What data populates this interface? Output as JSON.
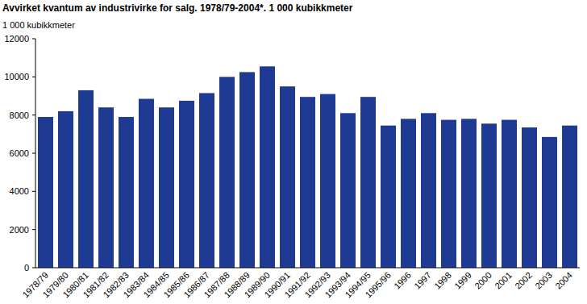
{
  "chart_data": {
    "type": "bar",
    "title": "Avvirket kvantum av industrivirke for salg. 1978/79-2004*. 1 000 kubikkmeter",
    "y_label": "1 000 kubikkmeter",
    "categories": [
      "1978/79",
      "1979/80",
      "1980/81",
      "1981/82",
      "1982/83",
      "1983/84",
      "1984/85",
      "1985/86",
      "1986/87",
      "1987/88",
      "1988/89",
      "1989/90",
      "1990/91",
      "1991/92",
      "1992/93",
      "1993/94",
      "1994/95",
      "1995/96",
      "1996",
      "1997",
      "1998",
      "1999",
      "2000",
      "2001",
      "2002",
      "2003",
      "2004"
    ],
    "values": [
      7900,
      8200,
      9300,
      8400,
      7900,
      8850,
      8400,
      8750,
      9150,
      10000,
      10250,
      10550,
      9500,
      8950,
      9100,
      8100,
      8950,
      7450,
      7800,
      8100,
      7750,
      7800,
      7550,
      7750,
      7350,
      6850,
      7450
    ],
    "color": "#1f3a93",
    "ylim": [
      0,
      12000
    ],
    "yticks": [
      0,
      2000,
      4000,
      6000,
      8000,
      10000,
      12000
    ],
    "grid": false
  }
}
